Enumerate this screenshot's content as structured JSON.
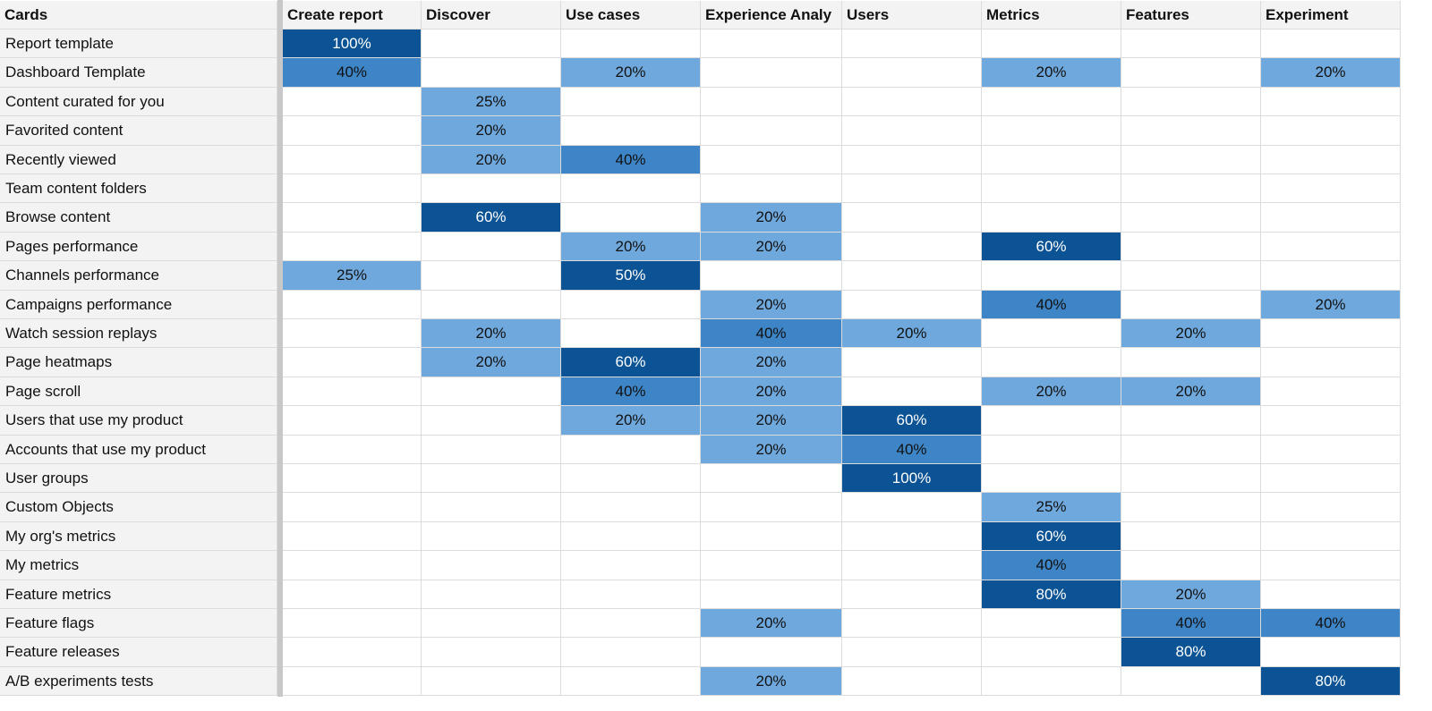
{
  "table": {
    "header": [
      "Cards",
      "Create report",
      "Discover",
      "Use cases",
      "Experience Analy",
      "Users",
      "Metrics",
      "Features",
      "Experiment"
    ],
    "rows": [
      [
        "Report template",
        "100%",
        null,
        null,
        null,
        null,
        null,
        null,
        null
      ],
      [
        "Dashboard Template",
        "40%",
        null,
        "20%",
        null,
        null,
        "20%",
        null,
        "20%"
      ],
      [
        "Content curated for you",
        null,
        "25%",
        null,
        null,
        null,
        null,
        null,
        null
      ],
      [
        "Favorited content",
        null,
        "20%",
        null,
        null,
        null,
        null,
        null,
        null
      ],
      [
        "Recently viewed",
        null,
        "20%",
        "40%",
        null,
        null,
        null,
        null,
        null
      ],
      [
        "Team content folders",
        null,
        null,
        null,
        null,
        null,
        null,
        null,
        null
      ],
      [
        "Browse content",
        null,
        "60%",
        null,
        "20%",
        null,
        null,
        null,
        null
      ],
      [
        "Pages performance",
        null,
        null,
        "20%",
        "20%",
        null,
        "60%",
        null,
        null
      ],
      [
        "Channels performance",
        "25%",
        null,
        "50%",
        null,
        null,
        null,
        null,
        null
      ],
      [
        "Campaigns performance",
        null,
        null,
        null,
        "20%",
        null,
        "40%",
        null,
        "20%"
      ],
      [
        "Watch session replays",
        null,
        "20%",
        null,
        "40%",
        "20%",
        null,
        "20%",
        null
      ],
      [
        "Page heatmaps",
        null,
        "20%",
        "60%",
        "20%",
        null,
        null,
        null,
        null
      ],
      [
        "Page scroll",
        null,
        null,
        "40%",
        "20%",
        null,
        "20%",
        "20%",
        null
      ],
      [
        "Users that use my product",
        null,
        null,
        "20%",
        "20%",
        "60%",
        null,
        null,
        null
      ],
      [
        "Accounts that use my product",
        null,
        null,
        null,
        "20%",
        "40%",
        null,
        null,
        null
      ],
      [
        "User groups",
        null,
        null,
        null,
        null,
        "100%",
        null,
        null,
        null
      ],
      [
        "Custom Objects",
        null,
        null,
        null,
        null,
        null,
        "25%",
        null,
        null
      ],
      [
        "My org's metrics",
        null,
        null,
        null,
        null,
        null,
        "60%",
        null,
        null
      ],
      [
        "My metrics",
        null,
        null,
        null,
        null,
        null,
        "40%",
        null,
        null
      ],
      [
        "Feature metrics",
        null,
        null,
        null,
        null,
        null,
        "80%",
        "20%",
        null
      ],
      [
        "Feature flags",
        null,
        null,
        null,
        "20%",
        null,
        null,
        "40%",
        "40%"
      ],
      [
        "Feature releases",
        null,
        null,
        null,
        null,
        null,
        null,
        "80%",
        null
      ],
      [
        "A/B experiments tests",
        null,
        null,
        null,
        "20%",
        null,
        null,
        null,
        "80%"
      ]
    ]
  }
}
